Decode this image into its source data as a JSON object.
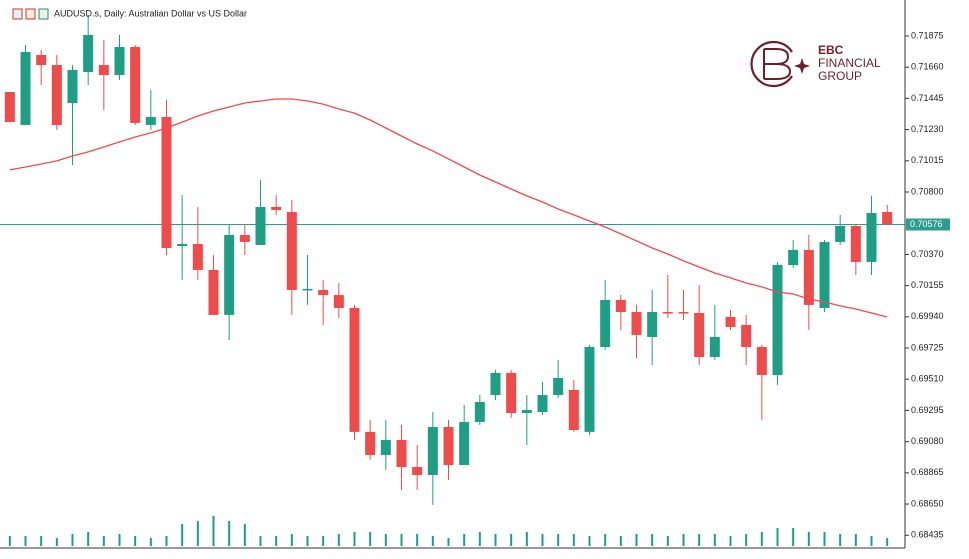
{
  "chart_data": {
    "type": "candlestick",
    "title": "AUDUSD.s, Daily:  Australian Dollar vs US Dollar",
    "logo": {
      "name": "EBC",
      "line1": "FINANCIAL",
      "line2": "GROUP"
    },
    "categories": [
      null,
      null,
      null,
      null,
      null,
      null,
      null,
      null,
      null,
      null,
      null,
      null,
      null,
      null,
      null,
      null,
      null,
      null,
      null,
      null,
      null,
      null,
      null,
      null,
      null,
      null,
      null,
      null,
      null,
      null,
      null,
      null,
      null,
      null,
      null,
      null,
      null,
      null,
      null,
      null,
      null,
      null,
      null,
      null,
      null,
      null,
      null,
      null,
      null,
      null,
      null,
      null,
      null,
      null,
      null,
      null,
      null
    ],
    "open": [
      0.71489,
      0.71262,
      0.71744,
      0.71675,
      0.71413,
      0.71627,
      0.71675,
      0.71606,
      0.71799,
      0.71262,
      0.71317,
      0.70428,
      0.70442,
      0.70263,
      0.69953,
      0.70504,
      0.70435,
      0.70697,
      0.70662,
      0.70125,
      0.70125,
      0.7009,
      0.70001,
      0.69147,
      0.68988,
      0.69091,
      0.68905,
      0.6885,
      0.69181,
      0.68919,
      0.69215,
      0.69401,
      0.69553,
      0.69277,
      0.69284,
      0.69401,
      0.69436,
      0.69147,
      0.69732,
      0.70056,
      0.69973,
      0.69801,
      0.69973,
      0.69973,
      0.69966,
      0.69663,
      0.69939,
      0.69884,
      0.69732,
      0.69539,
      0.70297,
      0.70401,
      0.70001,
      0.70456,
      0.70566,
      0.70318,
      0.70662
    ],
    "high": [
      0.71489,
      0.71813,
      0.71779,
      0.71744,
      0.71675,
      0.7202,
      0.71847,
      0.71882,
      0.71813,
      0.71503,
      0.71434,
      0.70779,
      0.70697,
      0.70366,
      0.70573,
      0.70573,
      0.70883,
      0.70779,
      0.70745,
      0.70366,
      0.70194,
      0.70173,
      0.70022,
      0.69229,
      0.69229,
      0.69195,
      0.69057,
      0.69284,
      0.69229,
      0.69333,
      0.69401,
      0.69574,
      0.69574,
      0.69401,
      0.69491,
      0.69643,
      0.69505,
      0.69746,
      0.70194,
      0.7009,
      0.70022,
      0.70125,
      0.70228,
      0.70125,
      0.70159,
      0.70022,
      0.69987,
      0.69953,
      0.69746,
      0.70318,
      0.70469,
      0.70504,
      0.70469,
      0.70642,
      0.70573,
      0.70773,
      0.70711
    ],
    "low": [
      0.71282,
      0.71262,
      0.71537,
      0.71227,
      0.70986,
      0.71537,
      0.71365,
      0.71572,
      0.71262,
      0.71227,
      0.70366,
      0.70194,
      0.70194,
      0.69953,
      0.6978,
      0.70366,
      0.70435,
      0.70642,
      0.69953,
      0.70022,
      0.69884,
      0.69932,
      0.69091,
      0.68954,
      0.68885,
      0.68747,
      0.68747,
      0.68644,
      0.68816,
      0.68919,
      0.69195,
      0.69367,
      0.69243,
      0.69057,
      0.69264,
      0.69381,
      0.69147,
      0.69126,
      0.69712,
      0.69849,
      0.69656,
      0.69608,
      0.69932,
      0.69918,
      0.69608,
      0.69643,
      0.69849,
      0.69608,
      0.69229,
      0.6947,
      0.70277,
      0.69849,
      0.69973,
      0.70435,
      0.70228,
      0.70228,
      0.70573
    ],
    "close": [
      0.71282,
      0.71765,
      0.71675,
      0.71262,
      0.71641,
      0.71882,
      0.71606,
      0.71799,
      0.71276,
      0.71317,
      0.70414,
      0.70442,
      0.70263,
      0.69953,
      0.70504,
      0.70456,
      0.70697,
      0.70676,
      0.70125,
      0.70132,
      0.7009,
      0.70001,
      0.69147,
      0.68988,
      0.69091,
      0.68905,
      0.6885,
      0.69181,
      0.68919,
      0.69215,
      0.69353,
      0.69553,
      0.69277,
      0.69298,
      0.69401,
      0.69519,
      0.6916,
      0.69732,
      0.70056,
      0.69973,
      0.69815,
      0.69973,
      0.69966,
      0.69966,
      0.69663,
      0.69801,
      0.6987,
      0.69732,
      0.69539,
      0.70297,
      0.70401,
      0.70022,
      0.70456,
      0.70566,
      0.70318,
      0.70655,
      0.70576
    ],
    "volume": [
      10,
      10,
      10,
      8,
      12,
      14,
      10,
      12,
      10,
      8,
      10,
      22,
      25,
      30,
      25,
      22,
      10,
      10,
      12,
      10,
      10,
      12,
      14,
      14,
      12,
      12,
      12,
      10,
      8,
      12,
      14,
      12,
      12,
      14,
      12,
      12,
      12,
      10,
      12,
      10,
      12,
      12,
      10,
      12,
      12,
      12,
      10,
      12,
      14,
      18,
      18,
      14,
      14,
      12,
      12,
      10,
      8
    ],
    "up_color": "#1f9e86",
    "down_color": "#ef4b4b",
    "volume_color": "#1f9e86",
    "series": [
      {
        "color": "#ef4b4b",
        "values": [
          0.70952,
          0.70972,
          0.70993,
          0.71014,
          0.71048,
          0.71076,
          0.7111,
          0.71145,
          0.71179,
          0.71207,
          0.71241,
          0.71282,
          0.71324,
          0.71358,
          0.71386,
          0.71413,
          0.71427,
          0.71441,
          0.71441,
          0.71427,
          0.71406,
          0.71372,
          0.71344,
          0.71296,
          0.71241,
          0.71186,
          0.71131,
          0.71083,
          0.71028,
          0.70972,
          0.70917,
          0.70869,
          0.70821,
          0.70773,
          0.70731,
          0.70683,
          0.70642,
          0.706,
          0.70559,
          0.70511,
          0.70463,
          0.70414,
          0.70373,
          0.70325,
          0.70283,
          0.70242,
          0.70208,
          0.70173,
          0.70146,
          0.70111,
          0.70097,
          0.70063,
          0.70042,
          0.70015,
          0.69994,
          0.69966,
          0.69939
        ]
      }
    ],
    "price_line": 0.70576,
    "price_line_color": "#2a9d8f",
    "ylim": [
      0.68347,
      0.72123
    ],
    "yticks": [
      0.71875,
      {
        "value": 0.7166,
        "label": "0.71660"
      },
      0.71445,
      {
        "value": 0.7123,
        "label": "0.71230"
      },
      0.71015,
      {
        "value": 0.708,
        "label": "0.70800"
      },
      {
        "value": 0.7037,
        "label": "0.70370"
      },
      0.70155,
      {
        "value": 0.6994,
        "label": "0.69940"
      },
      0.69725,
      {
        "value": 0.6951,
        "label": "0.69510"
      },
      0.69295,
      {
        "value": 0.6908,
        "label": "0.69080"
      },
      0.68865,
      {
        "value": 0.6865,
        "label": "0.68650"
      },
      0.68435
    ]
  }
}
